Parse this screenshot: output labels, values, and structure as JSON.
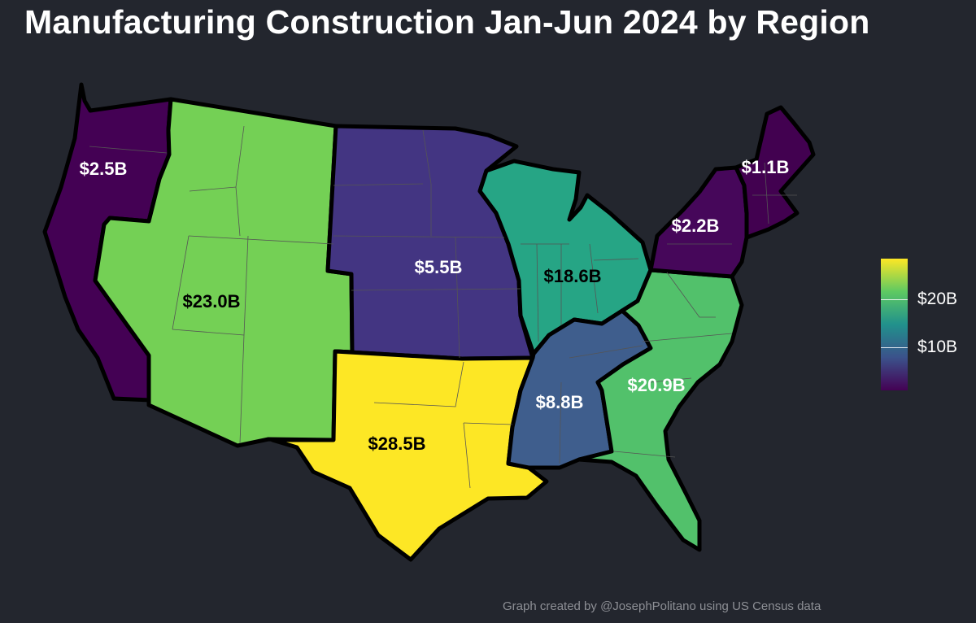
{
  "title": "Manufacturing Construction Jan-Jun 2024 by Region",
  "footer": "Graph created by @JosephPolitano using US Census data",
  "legend": {
    "ticks": [
      {
        "value": 20,
        "label": "$20B"
      },
      {
        "value": 10,
        "label": "$10B"
      }
    ],
    "gradient": [
      "#440154",
      "#3b528b",
      "#21918c",
      "#5ec962",
      "#fde725"
    ]
  },
  "regions": [
    {
      "id": "pacific",
      "label": "$2.5B",
      "value": 2.5,
      "color": "#440154",
      "label_color": "#ffffff"
    },
    {
      "id": "mountain",
      "label": "$23.0B",
      "value": 23.0,
      "color": "#74d055",
      "label_color": "#000000"
    },
    {
      "id": "west-north-central",
      "label": "$5.5B",
      "value": 5.5,
      "color": "#433582",
      "label_color": "#ffffff"
    },
    {
      "id": "west-south-central",
      "label": "$28.5B",
      "value": 28.5,
      "color": "#fde725",
      "label_color": "#000000"
    },
    {
      "id": "east-north-central",
      "label": "$18.6B",
      "value": 18.6,
      "color": "#26a585",
      "label_color": "#000000"
    },
    {
      "id": "east-south-central",
      "label": "$8.8B",
      "value": 8.8,
      "color": "#3f5e8d",
      "label_color": "#ffffff"
    },
    {
      "id": "south-atlantic",
      "label": "$20.9B",
      "value": 20.9,
      "color": "#52c16b",
      "label_color": "#ffffff"
    },
    {
      "id": "middle-atlantic",
      "label": "$2.2B",
      "value": 2.2,
      "color": "#46075a",
      "label_color": "#ffffff"
    },
    {
      "id": "new-england",
      "label": "$1.1B",
      "value": 1.1,
      "color": "#420150",
      "label_color": "#ffffff"
    }
  ]
}
